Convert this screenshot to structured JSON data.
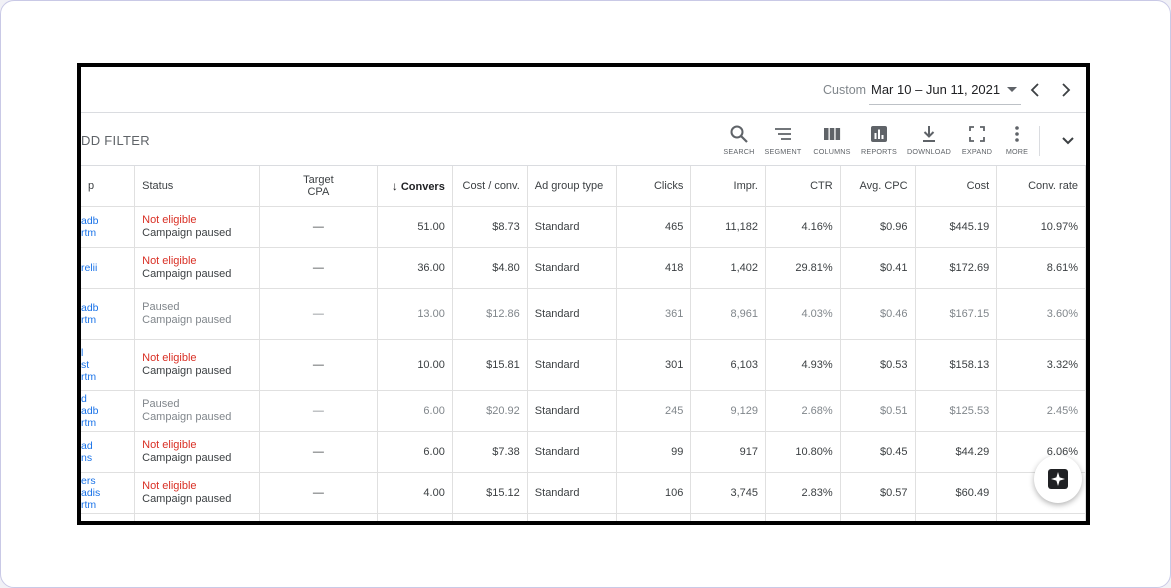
{
  "date_range": {
    "label": "Custom",
    "value": "Mar 10 – Jun 11, 2021"
  },
  "toolbar": {
    "filter_label": "DD FILTER",
    "tools": [
      {
        "label": "SEARCH",
        "icon": "search-icon"
      },
      {
        "label": "SEGMENT",
        "icon": "segment-icon"
      },
      {
        "label": "COLUMNS",
        "icon": "columns-icon"
      },
      {
        "label": "REPORTS",
        "icon": "reports-icon"
      },
      {
        "label": "DOWNLOAD",
        "icon": "download-icon"
      },
      {
        "label": "EXPAND",
        "icon": "expand-icon"
      },
      {
        "label": "MORE",
        "icon": "more-vert-icon"
      }
    ]
  },
  "table": {
    "headers": {
      "name": "p",
      "status": "Status",
      "target_cpa_1": "Target",
      "target_cpa_2": "CPA",
      "conversions": "Convers",
      "cost_conv": "Cost / conv.",
      "ad_group_type": "Ad group type",
      "clicks": "Clicks",
      "impr": "Impr.",
      "ctr": "CTR",
      "avg_cpc": "Avg. CPC",
      "cost": "Cost",
      "conv_rate": "Conv. rate"
    },
    "rows": [
      {
        "name": [
          "adb",
          "rtm"
        ],
        "status": "Not eligible",
        "status_color": "red",
        "sub": "Campaign paused",
        "target_cpa": "—",
        "conversions": "51.00",
        "cost_conv": "$8.73",
        "type": "Standard",
        "clicks": "465",
        "impr": "11,182",
        "ctr": "4.16%",
        "avg_cpc": "$0.96",
        "cost": "$445.19",
        "conv_rate": "10.97%"
      },
      {
        "name": [
          "relii"
        ],
        "status": "Not eligible",
        "status_color": "red",
        "sub": "Campaign paused",
        "target_cpa": "—",
        "conversions": "36.00",
        "cost_conv": "$4.80",
        "type": "Standard",
        "clicks": "418",
        "impr": "1,402",
        "ctr": "29.81%",
        "avg_cpc": "$0.41",
        "cost": "$172.69",
        "conv_rate": "8.61%"
      },
      {
        "name": [
          "adb",
          "rtm"
        ],
        "status": "Paused",
        "status_color": "grey",
        "sub": "Campaign paused",
        "target_cpa": "—",
        "conversions": "13.00",
        "cost_conv": "$12.86",
        "type": "Standard",
        "clicks": "361",
        "impr": "8,961",
        "ctr": "4.03%",
        "avg_cpc": "$0.46",
        "cost": "$167.15",
        "conv_rate": "3.60%"
      },
      {
        "name": [
          "l",
          "st",
          "rtm"
        ],
        "status": "Not eligible",
        "status_color": "red",
        "sub": "Campaign paused",
        "target_cpa": "—",
        "conversions": "10.00",
        "cost_conv": "$15.81",
        "type": "Standard",
        "clicks": "301",
        "impr": "6,103",
        "ctr": "4.93%",
        "avg_cpc": "$0.53",
        "cost": "$158.13",
        "conv_rate": "3.32%"
      },
      {
        "name": [
          "d",
          "adb",
          "rtm"
        ],
        "status": "Paused",
        "status_color": "grey",
        "sub": "Campaign paused",
        "target_cpa": "—",
        "conversions": "6.00",
        "cost_conv": "$20.92",
        "type": "Standard",
        "clicks": "245",
        "impr": "9,129",
        "ctr": "2.68%",
        "avg_cpc": "$0.51",
        "cost": "$125.53",
        "conv_rate": "2.45%"
      },
      {
        "name": [
          "ad",
          "ns"
        ],
        "status": "Not eligible",
        "status_color": "red",
        "sub": "Campaign paused",
        "target_cpa": "—",
        "conversions": "6.00",
        "cost_conv": "$7.38",
        "type": "Standard",
        "clicks": "99",
        "impr": "917",
        "ctr": "10.80%",
        "avg_cpc": "$0.45",
        "cost": "$44.29",
        "conv_rate": "6.06%"
      },
      {
        "name": [
          "ers",
          "adis",
          "rtm"
        ],
        "status": "Not eligible",
        "status_color": "red",
        "sub": "Campaign paused",
        "target_cpa": "—",
        "conversions": "4.00",
        "cost_conv": "$15.12",
        "type": "Standard",
        "clicks": "106",
        "impr": "3,745",
        "ctr": "2.83%",
        "avg_cpc": "$0.57",
        "cost": "$60.49",
        "conv_rate": ""
      }
    ]
  },
  "colors": {
    "link": "#1a73e8",
    "not_eligible": "#d93025",
    "paused": "#80868b",
    "frame": "#000000"
  },
  "fab": {
    "icon": "sparkle-star-icon"
  }
}
